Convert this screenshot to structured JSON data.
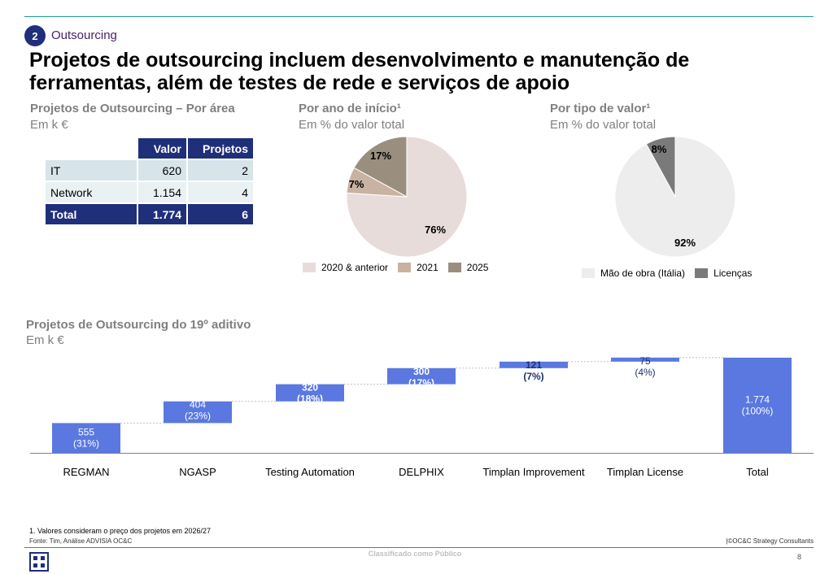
{
  "section": {
    "number": "2",
    "label": "Outsourcing"
  },
  "title": "Projetos de outsourcing incluem desenvolvimento e manutenção de ferramentas, além de testes de rede e serviços de apoio",
  "table_block": {
    "heading": "Projetos de Outsourcing – Por área",
    "unit": "Em k €",
    "headers": [
      "Valor",
      "Projetos"
    ],
    "rows": [
      {
        "area": "IT",
        "valor": "620",
        "projetos": "2"
      },
      {
        "area": "Network",
        "valor": "1.154",
        "projetos": "4"
      }
    ],
    "total": {
      "area": "Total",
      "valor": "1.774",
      "projetos": "6"
    }
  },
  "colors": {
    "navy": "#1f2f7a",
    "bar_blue": "#5a78e0",
    "pie_light": "#e8dcdb",
    "pie_mid": "#c8b2a2",
    "pie_dark": "#9a8f7f",
    "pie_grey_light": "#ededed",
    "pie_grey_dark": "#7a7a7a",
    "teal_line": "#1a9a8a"
  },
  "chart_data": [
    {
      "type": "pie",
      "title": "Por ano de início¹",
      "subtitle": "Em % do valor total",
      "slices": [
        {
          "label": "2020 & anterior",
          "value": 76,
          "display": "76%",
          "color": "#e8dcdb"
        },
        {
          "label": "2021",
          "value": 7,
          "display": "7%",
          "color": "#c8b2a2"
        },
        {
          "label": "2025",
          "value": 17,
          "display": "17%",
          "color": "#9a8f7f"
        }
      ]
    },
    {
      "type": "pie",
      "title": "Por tipo de valor¹",
      "subtitle": "Em % do valor total",
      "slices": [
        {
          "label": "Mão de obra (Itália)",
          "value": 92,
          "display": "92%",
          "color": "#ededed"
        },
        {
          "label": "Licenças",
          "value": 8,
          "display": "8%",
          "color": "#7a7a7a"
        }
      ]
    },
    {
      "type": "bar",
      "subtype": "waterfall",
      "title": "Projetos de Outsourcing do 19º aditivo",
      "subtitle": "Em k €",
      "categories": [
        "REGMAN",
        "NGASP",
        "Testing Automation",
        "DELPHIX",
        "Timplan Improvement",
        "Timplan License",
        "Total"
      ],
      "values": [
        555,
        404,
        320,
        300,
        121,
        75,
        1774
      ],
      "shares": [
        "(31%)",
        "(23%)",
        "(18%)",
        "(17%)",
        "(7%)",
        "(4%)",
        "(100%)"
      ],
      "labels": [
        "555",
        "404",
        "320",
        "300",
        "121",
        "75",
        "1.774"
      ],
      "is_total": [
        false,
        false,
        false,
        false,
        false,
        false,
        true
      ],
      "ylim": [
        0,
        2400
      ]
    }
  ],
  "footer": {
    "footnote_num": "1.",
    "footnote": "Valores consideram o preço dos projetos em 2026/27",
    "source": "Fonte: Tim, Análise ADVISIA OC&C",
    "copyright": "|©OC&C Strategy Consultants",
    "classification": "Classificado como Público",
    "page": "8"
  }
}
